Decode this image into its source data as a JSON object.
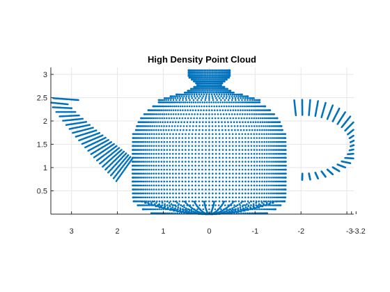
{
  "chart_data": {
    "type": "scatter",
    "title": "High Density Point Cloud",
    "xlabel": "",
    "ylabel": "",
    "series": [
      {
        "shape": "teapot",
        "color": "#0072BD"
      }
    ],
    "xlim": [
      -3.15,
      3.45
    ],
    "x_reversed": true,
    "ylim": [
      0,
      3.15
    ],
    "xticks": [
      3,
      2,
      1,
      0,
      -1,
      -2,
      -3
    ],
    "yticks": [
      0.5,
      1,
      1.5,
      2,
      2.5,
      3
    ],
    "xtick_labels": [
      "3",
      "2",
      "1",
      "0",
      "-1",
      "-2",
      "-3"
    ],
    "ytick_labels": [
      "0.5",
      "1",
      "1.5",
      "2",
      "2.5",
      "3"
    ],
    "extra_tick_labels": [
      {
        "value": -3.1,
        "label": "-3"
      },
      {
        "value": -3.2,
        "label": "-3.2"
      }
    ],
    "grid": true,
    "legend": "none"
  }
}
